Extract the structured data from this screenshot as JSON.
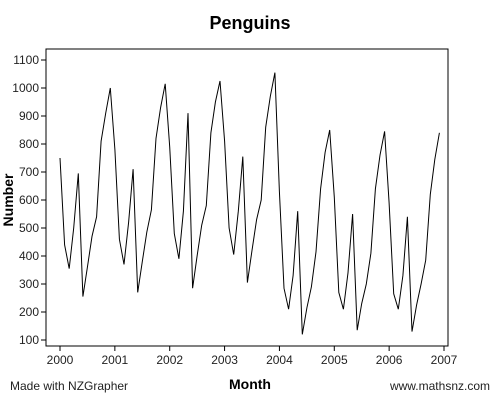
{
  "chart_data": {
    "type": "line",
    "title": "Penguins",
    "xlabel": "Month",
    "ylabel": "Number",
    "xlim": [
      2000,
      2007
    ],
    "ylim": [
      70,
      1150
    ],
    "x_ticks": [
      2000,
      2001,
      2002,
      2003,
      2004,
      2005,
      2006,
      2007
    ],
    "y_ticks": [
      100,
      200,
      300,
      400,
      500,
      600,
      700,
      800,
      900,
      1000,
      1100
    ],
    "grid": false,
    "series": [
      {
        "color": "#000000",
        "x": [
          2000.0,
          2000.083,
          2000.167,
          2000.25,
          2000.333,
          2000.417,
          2000.5,
          2000.583,
          2000.667,
          2000.75,
          2000.833,
          2000.917,
          2001.0,
          2001.083,
          2001.167,
          2001.25,
          2001.333,
          2001.417,
          2001.5,
          2001.583,
          2001.667,
          2001.75,
          2001.833,
          2001.917,
          2002.0,
          2002.083,
          2002.167,
          2002.25,
          2002.333,
          2002.417,
          2002.5,
          2002.583,
          2002.667,
          2002.75,
          2002.833,
          2002.917,
          2003.0,
          2003.083,
          2003.167,
          2003.25,
          2003.333,
          2003.417,
          2003.5,
          2003.583,
          2003.667,
          2003.75,
          2003.833,
          2003.917,
          2004.0,
          2004.083,
          2004.167,
          2004.25,
          2004.333,
          2004.417,
          2004.5,
          2004.583,
          2004.667,
          2004.75,
          2004.833,
          2004.917,
          2005.0,
          2005.083,
          2005.167,
          2005.25,
          2005.333,
          2005.417,
          2005.5,
          2005.583,
          2005.667,
          2005.75,
          2005.833,
          2005.917,
          2006.0,
          2006.083,
          2006.167,
          2006.25,
          2006.333,
          2006.417,
          2006.5,
          2006.583,
          2006.667,
          2006.75,
          2006.833,
          2006.917
        ],
        "y": [
          750,
          440,
          355,
          500,
          695,
          255,
          360,
          470,
          540,
          810,
          910,
          1000,
          780,
          460,
          370,
          520,
          710,
          270,
          380,
          485,
          565,
          820,
          930,
          1015,
          790,
          480,
          390,
          560,
          910,
          285,
          400,
          510,
          580,
          840,
          950,
          1025,
          810,
          500,
          405,
          560,
          755,
          305,
          420,
          530,
          600,
          860,
          970,
          1055,
          630,
          285,
          210,
          330,
          560,
          120,
          215,
          290,
          415,
          640,
          770,
          850,
          610,
          270,
          210,
          340,
          550,
          135,
          230,
          300,
          410,
          640,
          760,
          845,
          590,
          265,
          210,
          330,
          540,
          130,
          225,
          300,
          385,
          620,
          745,
          840
        ]
      }
    ]
  },
  "footer": {
    "left": "Made with NZGrapher",
    "right": "www.mathsnz.com"
  }
}
